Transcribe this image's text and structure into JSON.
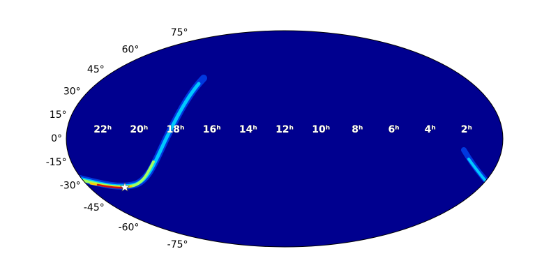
{
  "chart_data": {
    "type": "skymap",
    "xlim": [
      24,
      0
    ],
    "xticks": [
      {
        "value": 22,
        "label": "22ʰ"
      },
      {
        "value": 20,
        "label": "20ʰ"
      },
      {
        "value": 18,
        "label": "18ʰ"
      },
      {
        "value": 16,
        "label": "16ʰ"
      },
      {
        "value": 14,
        "label": "14ʰ"
      },
      {
        "value": 12,
        "label": "12ʰ"
      },
      {
        "value": 10,
        "label": "10ʰ"
      },
      {
        "value": 8,
        "label": "8ʰ"
      },
      {
        "value": 6,
        "label": "6ʰ"
      },
      {
        "value": 4,
        "label": "4ʰ"
      },
      {
        "value": 2,
        "label": "2ʰ"
      }
    ],
    "ylim": [
      -90,
      90
    ],
    "yticks": [
      {
        "value": 75,
        "label": "75°"
      },
      {
        "value": 60,
        "label": "60°"
      },
      {
        "value": 45,
        "label": "45°"
      },
      {
        "value": 30,
        "label": "30°"
      },
      {
        "value": 15,
        "label": "15°"
      },
      {
        "value": 0,
        "label": "0°"
      },
      {
        "value": -15,
        "label": "-15°"
      },
      {
        "value": -30,
        "label": "-30°"
      },
      {
        "value": -45,
        "label": "-45°"
      },
      {
        "value": -60,
        "label": "-60°"
      },
      {
        "value": -75,
        "label": "-75°"
      }
    ],
    "color": "#00008f"
  }
}
